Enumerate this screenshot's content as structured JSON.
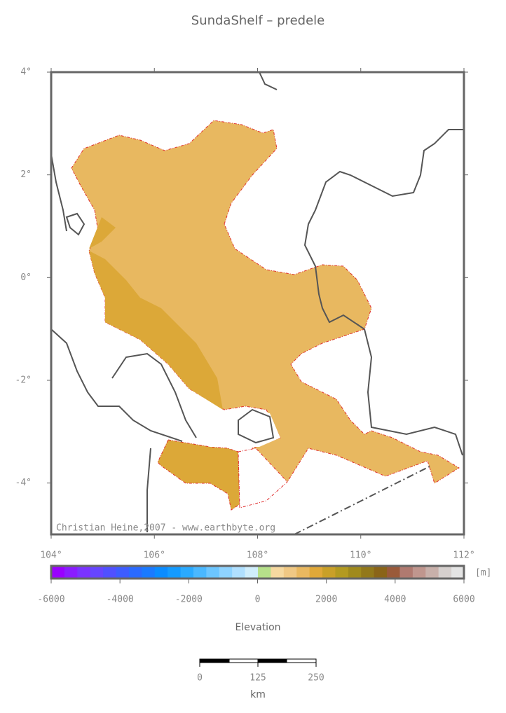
{
  "title": "SundaShelf – predele",
  "map": {
    "xlim": [
      104,
      112
    ],
    "ylim": [
      -5,
      4
    ],
    "xticks": [
      {
        "value": 104,
        "label": "104°"
      },
      {
        "value": 106,
        "label": "106°"
      },
      {
        "value": 108,
        "label": "108°"
      },
      {
        "value": 110,
        "label": "110°"
      },
      {
        "value": 112,
        "label": "112°"
      }
    ],
    "yticks": [
      {
        "value": 4,
        "label": "4°"
      },
      {
        "value": 2,
        "label": "2°"
      },
      {
        "value": 0,
        "label": "0°"
      },
      {
        "value": -2,
        "label": "-2°"
      },
      {
        "value": -4,
        "label": "-4°"
      }
    ],
    "credit": "Christian Heine,2007 - www.earthbyte.org"
  },
  "colorbar": {
    "lim": [
      -6000,
      6000
    ],
    "ticks": [
      -6000,
      -4000,
      -2000,
      0,
      2000,
      4000,
      6000
    ],
    "unit": "[m]",
    "label": "Elevation",
    "colors": [
      "#9900ff",
      "#8a1cff",
      "#7a33ff",
      "#6645ff",
      "#5050ff",
      "#3d5cff",
      "#2a6aff",
      "#1a7aff",
      "#0a8cff",
      "#149bff",
      "#2aaaff",
      "#4ab8ff",
      "#6cc6ff",
      "#8ed3ff",
      "#b0e0ff",
      "#d0eefc",
      "#b6e08a",
      "#f6d9a0",
      "#f0c884",
      "#e9b860",
      "#e0a838",
      "#c9a028",
      "#b39a20",
      "#a08a1c",
      "#92781a",
      "#8a6418",
      "#9a5a3a",
      "#b07a70",
      "#c0968e",
      "#c8b0aa",
      "#d6d0ce",
      "#e4e4e4"
    ]
  },
  "scale_bar": {
    "ticks": [
      0,
      125,
      250
    ],
    "unit": "km"
  }
}
